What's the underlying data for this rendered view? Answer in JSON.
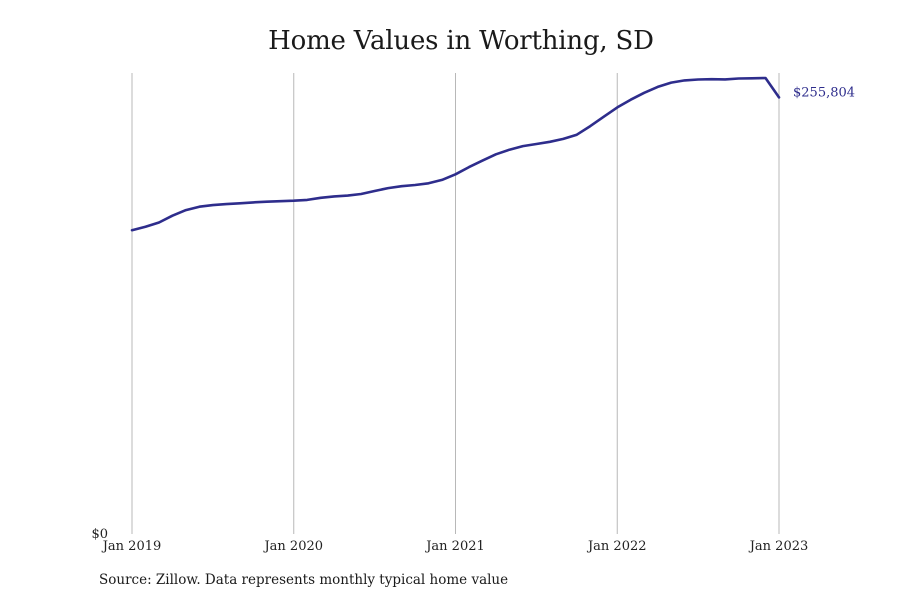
{
  "chart_data": {
    "type": "line",
    "title": "Home Values in Worthing, SD",
    "xlabel": "",
    "ylabel": "",
    "x_ticks": [
      "Jan 2019",
      "Jan 2020",
      "Jan 2021",
      "Jan 2022",
      "Jan 2023"
    ],
    "y_ticks": [
      {
        "value": 0,
        "label": "$0"
      }
    ],
    "ylim": [
      0,
      255804
    ],
    "grid": {
      "vertical": true,
      "horizontal": false
    },
    "end_label": "$255,804",
    "series": [
      {
        "color": "#2e2d8c",
        "x": [
          "2019-01",
          "2019-02",
          "2019-03",
          "2019-04",
          "2019-05",
          "2019-06",
          "2019-07",
          "2019-08",
          "2019-09",
          "2019-10",
          "2019-11",
          "2019-12",
          "2020-01",
          "2020-02",
          "2020-03",
          "2020-04",
          "2020-05",
          "2020-06",
          "2020-07",
          "2020-08",
          "2020-09",
          "2020-10",
          "2020-11",
          "2020-12",
          "2021-01",
          "2021-02",
          "2021-03",
          "2021-04",
          "2021-05",
          "2021-06",
          "2021-07",
          "2021-08",
          "2021-09",
          "2021-10",
          "2021-11",
          "2021-12",
          "2022-01",
          "2022-02",
          "2022-03",
          "2022-04",
          "2022-05",
          "2022-06",
          "2022-07",
          "2022-08",
          "2022-09",
          "2022-10",
          "2022-11",
          "2022-12",
          "2023-01"
        ],
        "y": [
          178000,
          180000,
          182500,
          186500,
          189800,
          191800,
          192700,
          193300,
          193800,
          194300,
          194700,
          195000,
          195300,
          195800,
          197000,
          197800,
          198300,
          199200,
          201000,
          202700,
          203800,
          204500,
          205500,
          207500,
          210800,
          215000,
          218800,
          222500,
          225200,
          227300,
          228500,
          229800,
          231500,
          234000,
          239000,
          244500,
          250000,
          254500,
          258500,
          262000,
          264500,
          265800,
          266300,
          266500,
          266400,
          266900,
          267000,
          267200,
          255804
        ]
      }
    ]
  },
  "source_note": "Source: Zillow. Data represents monthly typical home value"
}
